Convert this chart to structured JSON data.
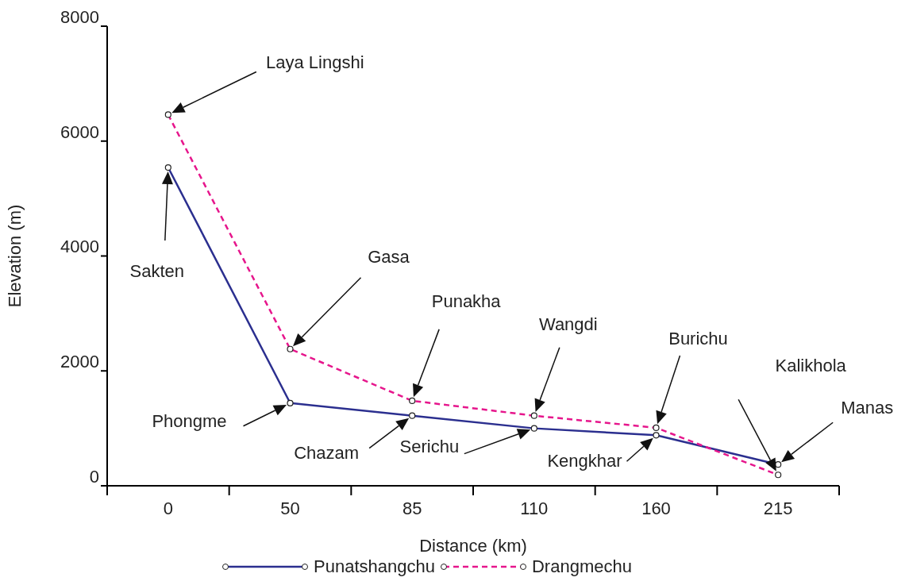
{
  "chart_data": {
    "type": "line",
    "xlabel": "Distance (km)",
    "ylabel": "Elevation (m)",
    "categories": [
      "0",
      "50",
      "85",
      "110",
      "160",
      "215"
    ],
    "series": [
      {
        "name": "Punatshangchu",
        "color": "#2b2f8f",
        "line_style": "solid",
        "values": [
          5540,
          1440,
          1220,
          1000,
          880,
          370
        ]
      },
      {
        "name": "Drangmechu",
        "color": "#e6168c",
        "line_style": "dashed",
        "values": [
          6460,
          2380,
          1480,
          1220,
          1010,
          190
        ]
      }
    ],
    "ylim": [
      0,
      8000
    ],
    "yticks": [
      0,
      2000,
      4000,
      6000,
      8000
    ],
    "grid": false,
    "legend": "bottom",
    "marker": "circle",
    "annotations": [
      "Laya Lingshi",
      "Sakten",
      "Gasa",
      "Punakha",
      "Wangdi",
      "Burichu",
      "Phongme",
      "Chazam",
      "Serichu",
      "Kengkhar",
      "Kalikhola",
      "Manas"
    ]
  }
}
